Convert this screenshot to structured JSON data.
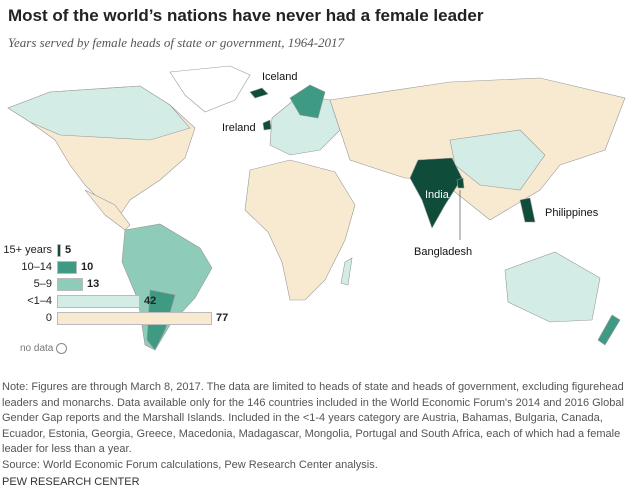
{
  "title": "Most of the world’s nations have never had a female leader",
  "subtitle": "Years served by female heads of state or government, 1964-2017",
  "colors": {
    "c15": "#0f4c3a",
    "c10": "#3f9a84",
    "c5": "#8fcbb9",
    "c1": "#d4ece6",
    "c0": "#f8ead1",
    "nodata": "#ffffff"
  },
  "legend": [
    {
      "label": "15+ years",
      "count": "5",
      "key": "c15"
    },
    {
      "label": "10–14",
      "count": "10",
      "key": "c10"
    },
    {
      "label": "5–9",
      "count": "13",
      "key": "c5"
    },
    {
      "label": "<1–4",
      "count": "42",
      "key": "c1"
    },
    {
      "label": "0",
      "count": "77",
      "key": "c0"
    }
  ],
  "nodata_label": "no data",
  "map_labels": {
    "iceland": "Iceland",
    "ireland": "Ireland",
    "india": "India",
    "bangladesh": "Bangladesh",
    "philippines": "Philippines"
  },
  "note": "Note: Figures are through March 8, 2017. The data are limited to heads of state and heads of government, excluding figurehead leaders and monarchs. Data available only for the 146 countries included in the World Economic Forum's 2014 and 2016 Global Gender Gap reports and the Marshall Islands. Included in the <1-4 years category are Austria, Bahamas, Bulgaria, Canada, Ecuador, Estonia, Georgia, Greece, Macedonia, Madagascar, Mongolia, Portugal and South Africa, each of which had a female leader for less than a year.",
  "source": "Source: World Economic Forum calculations, Pew Research Center analysis.",
  "brand": "PEW RESEARCH CENTER"
}
